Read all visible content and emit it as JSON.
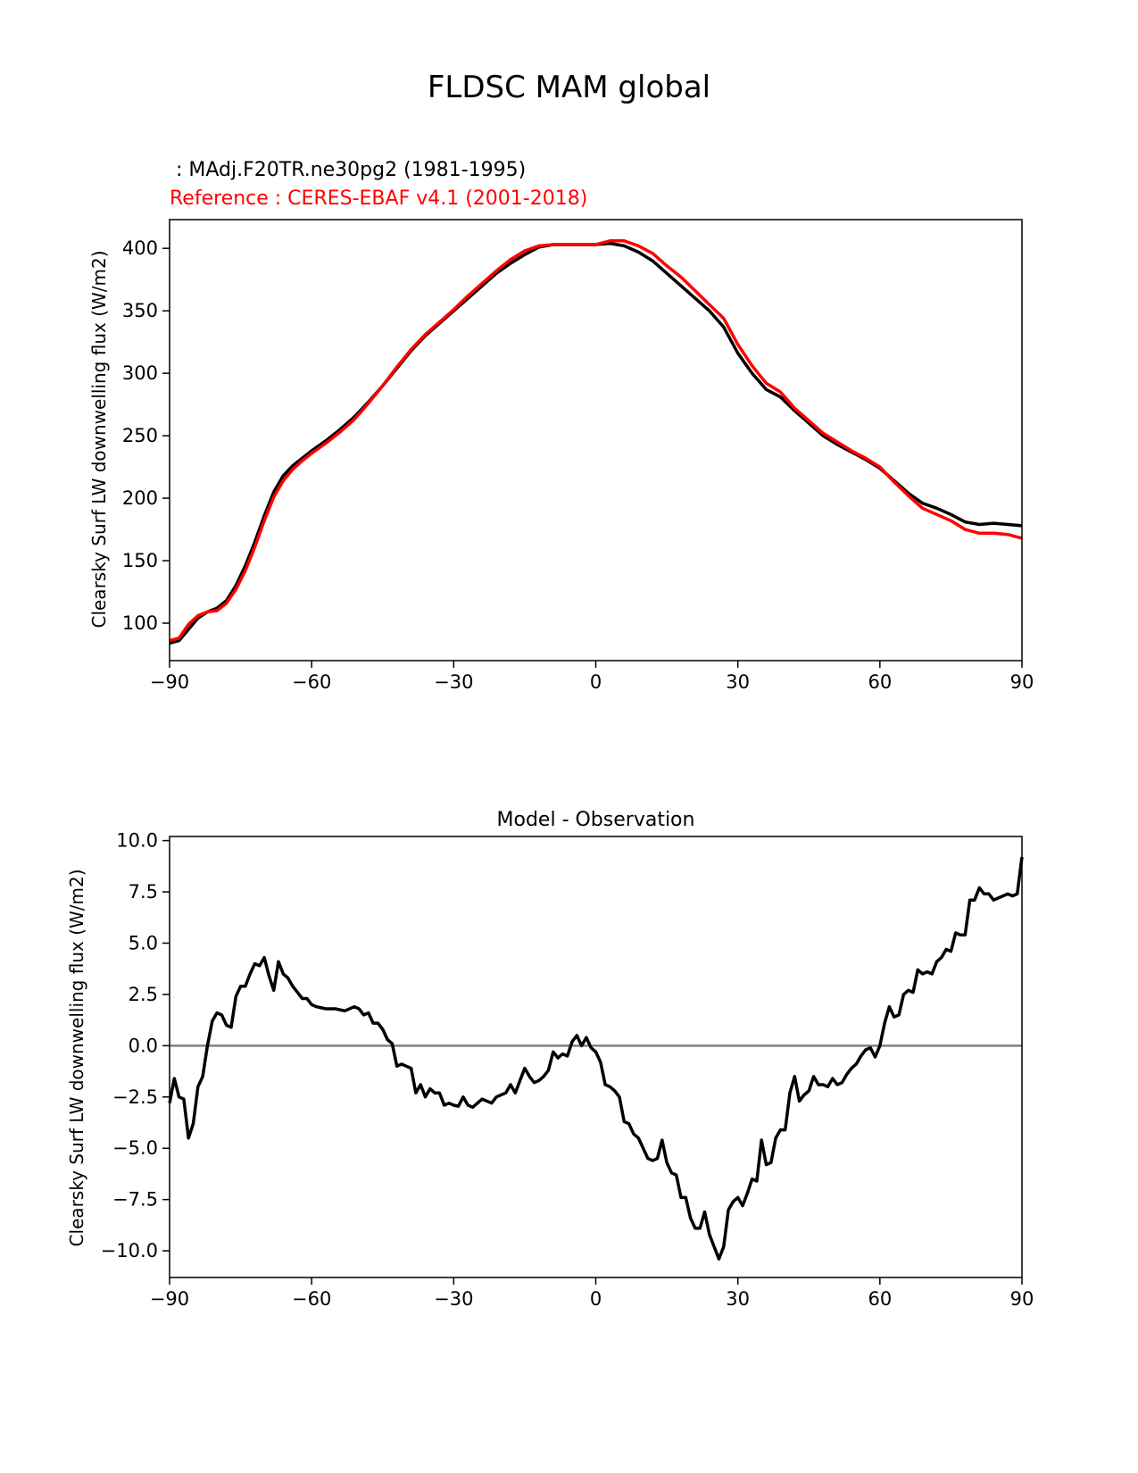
{
  "figure": {
    "suptitle": "FLDSC MAM global"
  },
  "chart_data": [
    {
      "type": "line",
      "test_label": " : MAdj.F20TR.ne30pg2 (1981-1995)",
      "ref_label": "Reference : CERES-EBAF v4.1 (2001-2018)",
      "ylabel": "Clearsky Surf LW downwelling flux (W/m2)",
      "xlim": [
        -90,
        90
      ],
      "ylim": [
        70,
        423
      ],
      "xticks": [
        -90,
        -60,
        -30,
        0,
        30,
        60,
        90
      ],
      "xtick_labels": [
        "−90",
        "−60",
        "−30",
        "0",
        "30",
        "60",
        "90"
      ],
      "yticks": [
        100,
        150,
        200,
        250,
        300,
        350,
        400
      ],
      "ytick_labels": [
        "100",
        "150",
        "200",
        "250",
        "300",
        "350",
        "400"
      ],
      "grid": false,
      "series": [
        {
          "color": "#000000",
          "x": [
            -90,
            -88,
            -86,
            -84,
            -82,
            -80,
            -78,
            -76,
            -74,
            -72,
            -70,
            -68,
            -66,
            -64,
            -62,
            -60,
            -57,
            -54,
            -51,
            -48,
            -45,
            -42,
            -39,
            -36,
            -33,
            -30,
            -27,
            -24,
            -21,
            -18,
            -15,
            -12,
            -9,
            -6,
            -3,
            0,
            3,
            6,
            9,
            12,
            15,
            18,
            21,
            24,
            27,
            30,
            33,
            36,
            39,
            42,
            45,
            48,
            51,
            54,
            57,
            60,
            63,
            66,
            69,
            72,
            75,
            78,
            81,
            84,
            87,
            90
          ],
          "y": [
            84,
            86,
            95,
            104,
            109,
            112,
            118,
            130,
            146,
            165,
            186,
            205,
            218,
            226,
            232,
            238,
            246,
            255,
            265,
            277,
            290,
            304,
            318,
            330,
            340,
            350,
            360,
            370,
            380,
            388,
            395,
            401,
            403,
            403,
            403,
            403,
            404,
            402,
            397,
            390,
            380,
            370,
            360,
            350,
            337,
            316,
            300,
            287,
            281,
            270,
            260,
            250,
            243,
            237,
            231,
            224,
            214,
            204,
            196,
            192,
            187,
            181,
            179,
            180,
            179,
            178
          ]
        },
        {
          "color": "#ff0000",
          "x": [
            -90,
            -88,
            -86,
            -84,
            -82,
            -80,
            -78,
            -76,
            -74,
            -72,
            -70,
            -68,
            -66,
            -64,
            -62,
            -60,
            -57,
            -54,
            -51,
            -48,
            -45,
            -42,
            -39,
            -36,
            -33,
            -30,
            -27,
            -24,
            -21,
            -18,
            -15,
            -12,
            -9,
            -6,
            -3,
            0,
            3,
            6,
            9,
            12,
            15,
            18,
            21,
            24,
            27,
            30,
            33,
            36,
            39,
            42,
            45,
            48,
            51,
            54,
            57,
            60,
            63,
            66,
            69,
            72,
            75,
            78,
            81,
            84,
            87,
            90
          ],
          "y": [
            86,
            88,
            99,
            106,
            109,
            110,
            116,
            127,
            142,
            161,
            182,
            201,
            214,
            223,
            230,
            236,
            244,
            253,
            263,
            276,
            290,
            305,
            319,
            331,
            341,
            351,
            362,
            372,
            382,
            391,
            398,
            402,
            403,
            403,
            403,
            403,
            406,
            406,
            402,
            396,
            386,
            377,
            366,
            355,
            344,
            323,
            306,
            292,
            285,
            272,
            262,
            252,
            245,
            238,
            232,
            225,
            213,
            202,
            192,
            187,
            182,
            175,
            172,
            172,
            171,
            168
          ]
        }
      ]
    },
    {
      "type": "line",
      "title": "Model - Observation",
      "ylabel": "Clearsky Surf LW downwelling flux (W/m2)",
      "xlim": [
        -90,
        90
      ],
      "ylim": [
        -11.3,
        10.2
      ],
      "xticks": [
        -90,
        -60,
        -30,
        0,
        30,
        60,
        90
      ],
      "xtick_labels": [
        "−90",
        "−60",
        "−30",
        "0",
        "30",
        "60",
        "90"
      ],
      "yticks": [
        10,
        7.5,
        5,
        2.5,
        0,
        -2.5,
        -5,
        -7.5,
        -10
      ],
      "ytick_labels": [
        "10.0",
        "7.5",
        "5.0",
        "2.5",
        "0.0",
        "−2.5",
        "−5.0",
        "−7.5",
        "−10.0"
      ],
      "grid": false,
      "zero_line_color": "#808080",
      "series": [
        {
          "color": "#000000",
          "x": [
            -90,
            -89,
            -88,
            -87,
            -86,
            -85,
            -84,
            -83,
            -82,
            -81,
            -80,
            -79,
            -78,
            -77,
            -76,
            -75,
            -74,
            -73,
            -72,
            -71,
            -70,
            -69,
            -68,
            -67,
            -66,
            -65,
            -64,
            -63,
            -62,
            -61,
            -60,
            -59,
            -57,
            -55,
            -53,
            -51,
            -50,
            -49,
            -48,
            -47,
            -46,
            -45,
            -44,
            -43,
            -42,
            -41,
            -40,
            -39,
            -38,
            -37,
            -36,
            -35,
            -34,
            -33,
            -32,
            -31,
            -30,
            -29,
            -28,
            -27,
            -26,
            -25,
            -24,
            -22,
            -21,
            -20,
            -19,
            -18,
            -17,
            -16,
            -15,
            -14,
            -13,
            -12,
            -11,
            -10,
            -9,
            -8,
            -7,
            -6,
            -5,
            -4,
            -3,
            -2,
            -1,
            0,
            1,
            2,
            3,
            4,
            5,
            6,
            7,
            8,
            9,
            10,
            11,
            12,
            13,
            14,
            15,
            16,
            17,
            18,
            19,
            20,
            21,
            22,
            23,
            24,
            25,
            26,
            27,
            28,
            29,
            30,
            31,
            32,
            33,
            34,
            35,
            36,
            37,
            38,
            39,
            40,
            41,
            42,
            43,
            44,
            45,
            46,
            47,
            48,
            49,
            50,
            51,
            52,
            53,
            54,
            55,
            56,
            57,
            58,
            59,
            60,
            61,
            62,
            63,
            64,
            65,
            66,
            67,
            68,
            69,
            70,
            71,
            72,
            73,
            74,
            75,
            76,
            77,
            78,
            79,
            80,
            81,
            82,
            83,
            84,
            85,
            86,
            87,
            88,
            89,
            90
          ],
          "y": [
            -2.8,
            -1.6,
            -2.5,
            -2.6,
            -4.5,
            -3.8,
            -2.0,
            -1.5,
            0.0,
            1.2,
            1.6,
            1.5,
            1.0,
            0.9,
            2.4,
            2.9,
            2.9,
            3.5,
            4.0,
            3.9,
            4.3,
            3.4,
            2.7,
            4.1,
            3.5,
            3.3,
            2.9,
            2.6,
            2.3,
            2.3,
            2.0,
            1.9,
            1.8,
            1.8,
            1.7,
            1.9,
            1.8,
            1.5,
            1.6,
            1.1,
            1.1,
            0.8,
            0.3,
            0.1,
            -1.0,
            -0.9,
            -1.0,
            -1.1,
            -2.3,
            -1.9,
            -2.5,
            -2.1,
            -2.3,
            -2.3,
            -2.9,
            -2.8,
            -2.9,
            -2.95,
            -2.5,
            -2.9,
            -3.0,
            -2.8,
            -2.6,
            -2.8,
            -2.5,
            -2.4,
            -2.3,
            -1.9,
            -2.3,
            -1.7,
            -1.1,
            -1.5,
            -1.8,
            -1.7,
            -1.5,
            -1.2,
            -0.3,
            -0.6,
            -0.4,
            -0.5,
            0.2,
            0.5,
            0.0,
            0.4,
            -0.1,
            -0.3,
            -0.8,
            -1.9,
            -2.0,
            -2.2,
            -2.5,
            -3.7,
            -3.8,
            -4.3,
            -4.5,
            -5.0,
            -5.5,
            -5.6,
            -5.5,
            -4.6,
            -5.7,
            -6.2,
            -6.3,
            -7.4,
            -7.4,
            -8.4,
            -8.9,
            -8.9,
            -8.1,
            -9.2,
            -9.8,
            -10.4,
            -9.8,
            -8.0,
            -7.6,
            -7.4,
            -7.8,
            -7.2,
            -6.5,
            -6.6,
            -4.6,
            -5.8,
            -5.7,
            -4.5,
            -4.1,
            -4.1,
            -2.3,
            -1.5,
            -2.7,
            -2.4,
            -2.2,
            -1.5,
            -1.9,
            -1.9,
            -2.0,
            -1.6,
            -1.9,
            -1.8,
            -1.4,
            -1.1,
            -0.9,
            -0.5,
            -0.2,
            -0.1,
            -0.55,
            0.0,
            1.1,
            1.9,
            1.4,
            1.5,
            2.5,
            2.7,
            2.6,
            3.7,
            3.5,
            3.6,
            3.5,
            4.1,
            4.3,
            4.7,
            4.6,
            5.5,
            5.4,
            5.4,
            7.1,
            7.1,
            7.7,
            7.4,
            7.4,
            7.1,
            7.2,
            7.3,
            7.4,
            7.3,
            7.4,
            9.2
          ]
        }
      ]
    }
  ]
}
